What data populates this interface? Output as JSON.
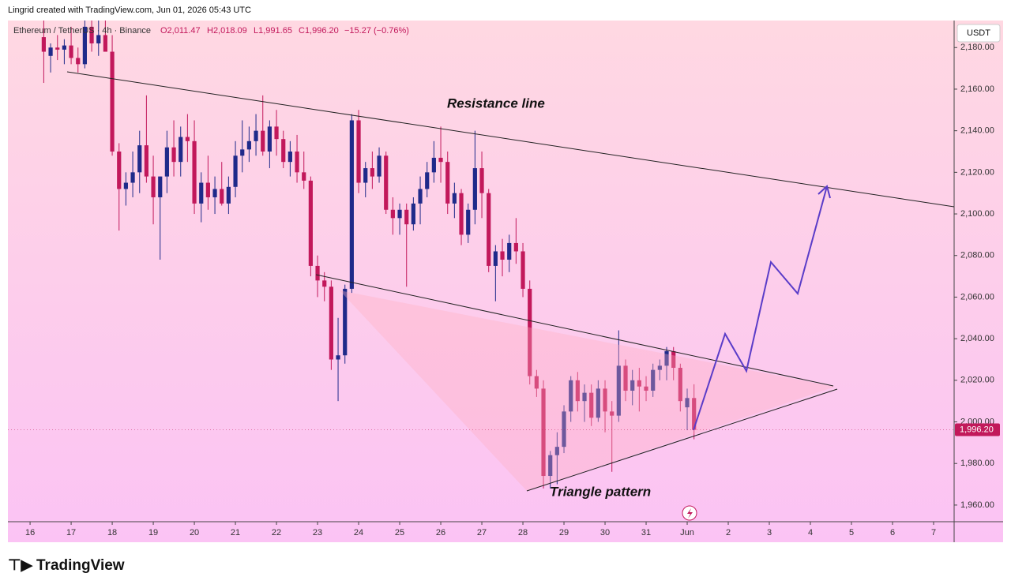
{
  "header": "Lingrid created with TradingView.com, Jun 01, 2026 05:43 UTC",
  "footer": "TradingView",
  "chart_data": {
    "type": "candlestick",
    "symbol": "Ethereum / TetherUS · 4h · Binance",
    "legend_values": [
      "O2,011.47",
      "H2,018.09",
      "L1,991.65",
      "C1,996.20",
      "−15.27 (−0.76%)"
    ],
    "currency": "USDT",
    "annotations": [
      "Resistance line",
      "Triangle pattern"
    ],
    "up_color": "#1f2a8a",
    "down_color": "#c2185b",
    "xlim": [
      -0.54,
      22.5
    ],
    "xticks": [
      {
        "value": 0,
        "label": "16"
      },
      {
        "value": 1,
        "label": "17"
      },
      {
        "value": 2,
        "label": "18"
      },
      {
        "value": 3,
        "label": "19"
      },
      {
        "value": 4,
        "label": "20"
      },
      {
        "value": 5,
        "label": "21"
      },
      {
        "value": 6,
        "label": "22"
      },
      {
        "value": 7,
        "label": "23"
      },
      {
        "value": 8,
        "label": "24"
      },
      {
        "value": 9,
        "label": "25"
      },
      {
        "value": 10,
        "label": "26"
      },
      {
        "value": 11,
        "label": "27"
      },
      {
        "value": 12,
        "label": "28"
      },
      {
        "value": 13,
        "label": "29"
      },
      {
        "value": 14,
        "label": "30"
      },
      {
        "value": 15,
        "label": "31"
      },
      {
        "value": 16,
        "label": "Jun"
      },
      {
        "value": 17,
        "label": "2"
      },
      {
        "value": 18,
        "label": "3"
      },
      {
        "value": 19,
        "label": "4"
      },
      {
        "value": 20,
        "label": "5"
      },
      {
        "value": 21,
        "label": "6"
      },
      {
        "value": 22,
        "label": "7"
      }
    ],
    "ylim": [
      1952,
      2193
    ],
    "yticks": [
      {
        "value": 1960,
        "label": "1,960.00"
      },
      {
        "value": 1980,
        "label": "1,980.00"
      },
      {
        "value": 2000,
        "label": "2,000.00"
      },
      {
        "value": 2020,
        "label": "2,020.00"
      },
      {
        "value": 2040,
        "label": "2,040.00"
      },
      {
        "value": 2060,
        "label": "2,060.00"
      },
      {
        "value": 2080,
        "label": "2,080.00"
      },
      {
        "value": 2100,
        "label": "2,100.00"
      },
      {
        "value": 2120,
        "label": "2,120.00"
      },
      {
        "value": 2140,
        "label": "2,140.00"
      },
      {
        "value": 2160,
        "label": "2,160.00"
      },
      {
        "value": 2180,
        "label": "2,180.00"
      }
    ],
    "last_price": {
      "value": 1996.2,
      "label": "1,996.20"
    },
    "candles": [
      [
        0.333,
        2185,
        2193,
        2163,
        2178
      ],
      [
        0.5,
        2176,
        2182,
        2168,
        2180
      ],
      [
        0.667,
        2180,
        2186,
        2174,
        2179
      ],
      [
        0.833,
        2179,
        2184,
        2172,
        2181
      ],
      [
        1.0,
        2181,
        2190,
        2172,
        2175
      ],
      [
        1.167,
        2175,
        2180,
        2168,
        2172
      ],
      [
        1.333,
        2172,
        2193,
        2170,
        2190
      ],
      [
        1.5,
        2190,
        2193,
        2178,
        2182
      ],
      [
        1.667,
        2182,
        2193,
        2176,
        2186
      ],
      [
        1.833,
        2186,
        2193,
        2180,
        2178
      ],
      [
        2.0,
        2178,
        2186,
        2128,
        2130
      ],
      [
        2.167,
        2130,
        2134,
        2092,
        2112
      ],
      [
        2.333,
        2112,
        2120,
        2104,
        2115
      ],
      [
        2.5,
        2115,
        2130,
        2108,
        2120
      ],
      [
        2.667,
        2120,
        2140,
        2110,
        2133
      ],
      [
        2.833,
        2133,
        2157,
        2115,
        2118
      ],
      [
        3.0,
        2118,
        2128,
        2095,
        2108
      ],
      [
        3.167,
        2108,
        2118,
        2078,
        2118
      ],
      [
        3.333,
        2118,
        2140,
        2110,
        2132
      ],
      [
        3.5,
        2132,
        2145,
        2118,
        2125
      ],
      [
        3.667,
        2125,
        2142,
        2118,
        2137
      ],
      [
        3.833,
        2137,
        2148,
        2125,
        2135
      ],
      [
        4.0,
        2135,
        2145,
        2100,
        2105
      ],
      [
        4.167,
        2105,
        2120,
        2096,
        2115
      ],
      [
        4.333,
        2115,
        2128,
        2102,
        2108
      ],
      [
        4.5,
        2108,
        2118,
        2100,
        2112
      ],
      [
        4.667,
        2112,
        2125,
        2104,
        2105
      ],
      [
        4.833,
        2105,
        2118,
        2100,
        2113
      ],
      [
        5.0,
        2113,
        2135,
        2108,
        2128
      ],
      [
        5.167,
        2128,
        2145,
        2120,
        2131
      ],
      [
        5.333,
        2131,
        2142,
        2125,
        2135
      ],
      [
        5.5,
        2135,
        2148,
        2128,
        2140
      ],
      [
        5.667,
        2140,
        2157,
        2128,
        2130
      ],
      [
        5.833,
        2130,
        2145,
        2122,
        2142
      ],
      [
        6.0,
        2142,
        2150,
        2128,
        2136
      ],
      [
        6.167,
        2136,
        2140,
        2122,
        2125
      ],
      [
        6.333,
        2125,
        2135,
        2118,
        2130
      ],
      [
        6.5,
        2130,
        2138,
        2115,
        2120
      ],
      [
        6.667,
        2120,
        2130,
        2112,
        2116
      ],
      [
        6.833,
        2116,
        2118,
        2070,
        2075
      ],
      [
        7.0,
        2075,
        2080,
        2060,
        2068
      ],
      [
        7.167,
        2068,
        2072,
        2058,
        2065
      ],
      [
        7.333,
        2065,
        2068,
        2025,
        2030
      ],
      [
        7.5,
        2030,
        2050,
        2010,
        2032
      ],
      [
        7.667,
        2032,
        2066,
        2028,
        2064
      ],
      [
        7.833,
        2064,
        2148,
        2062,
        2145
      ],
      [
        8.0,
        2145,
        2150,
        2110,
        2115
      ],
      [
        8.167,
        2115,
        2125,
        2108,
        2122
      ],
      [
        8.333,
        2122,
        2130,
        2112,
        2118
      ],
      [
        8.5,
        2118,
        2132,
        2115,
        2128
      ],
      [
        8.667,
        2128,
        2130,
        2100,
        2102
      ],
      [
        8.833,
        2102,
        2108,
        2090,
        2098
      ],
      [
        9.0,
        2098,
        2105,
        2090,
        2102
      ],
      [
        9.167,
        2102,
        2105,
        2065,
        2095
      ],
      [
        9.333,
        2095,
        2108,
        2092,
        2105
      ],
      [
        9.5,
        2105,
        2118,
        2095,
        2112
      ],
      [
        9.667,
        2112,
        2125,
        2108,
        2120
      ],
      [
        9.833,
        2120,
        2135,
        2115,
        2127
      ],
      [
        10.0,
        2127,
        2142,
        2115,
        2125
      ],
      [
        10.167,
        2125,
        2130,
        2100,
        2105
      ],
      [
        10.333,
        2105,
        2115,
        2098,
        2110
      ],
      [
        10.5,
        2110,
        2112,
        2085,
        2090
      ],
      [
        10.667,
        2090,
        2105,
        2086,
        2102
      ],
      [
        10.833,
        2102,
        2140,
        2095,
        2122
      ],
      [
        11.0,
        2122,
        2130,
        2098,
        2110
      ],
      [
        11.167,
        2110,
        2112,
        2072,
        2075
      ],
      [
        11.333,
        2075,
        2085,
        2058,
        2082
      ],
      [
        11.5,
        2082,
        2088,
        2070,
        2078
      ],
      [
        11.667,
        2078,
        2090,
        2072,
        2086
      ],
      [
        11.833,
        2086,
        2098,
        2076,
        2082
      ],
      [
        12.0,
        2082,
        2086,
        2060,
        2064
      ],
      [
        12.167,
        2064,
        2068,
        2018,
        2022
      ],
      [
        12.333,
        2022,
        2025,
        2012,
        2016
      ],
      [
        12.5,
        2016,
        2020,
        1968,
        1974
      ],
      [
        12.667,
        1974,
        1986,
        1968,
        1984
      ],
      [
        12.833,
        1984,
        1995,
        1970,
        1988
      ],
      [
        13.0,
        1988,
        2008,
        1985,
        2005
      ],
      [
        13.167,
        2005,
        2022,
        2000,
        2020
      ],
      [
        13.333,
        2020,
        2024,
        2005,
        2010
      ],
      [
        13.5,
        2010,
        2018,
        2000,
        2014
      ],
      [
        13.667,
        2014,
        2018,
        1998,
        2002
      ],
      [
        13.833,
        2002,
        2020,
        2000,
        2016
      ],
      [
        14.0,
        2016,
        2020,
        1995,
        2005
      ],
      [
        14.167,
        2005,
        2010,
        1976,
        2003
      ],
      [
        14.333,
        2003,
        2044,
        2000,
        2027
      ],
      [
        14.5,
        2027,
        2030,
        2010,
        2015
      ],
      [
        14.667,
        2015,
        2025,
        2008,
        2020
      ],
      [
        14.833,
        2020,
        2026,
        2005,
        2017
      ],
      [
        15.0,
        2017,
        2022,
        2010,
        2015
      ],
      [
        15.167,
        2015,
        2028,
        2012,
        2025
      ],
      [
        15.333,
        2025,
        2030,
        2020,
        2027
      ],
      [
        15.5,
        2027,
        2036,
        2020,
        2034
      ],
      [
        15.667,
        2034,
        2036,
        2020,
        2026
      ],
      [
        15.833,
        2026,
        2028,
        2005,
        2010
      ],
      [
        16.0,
        2007,
        2016,
        1996,
        2011.47
      ],
      [
        16.167,
        2011.47,
        2018.09,
        1991.65,
        1996.2
      ]
    ]
  }
}
